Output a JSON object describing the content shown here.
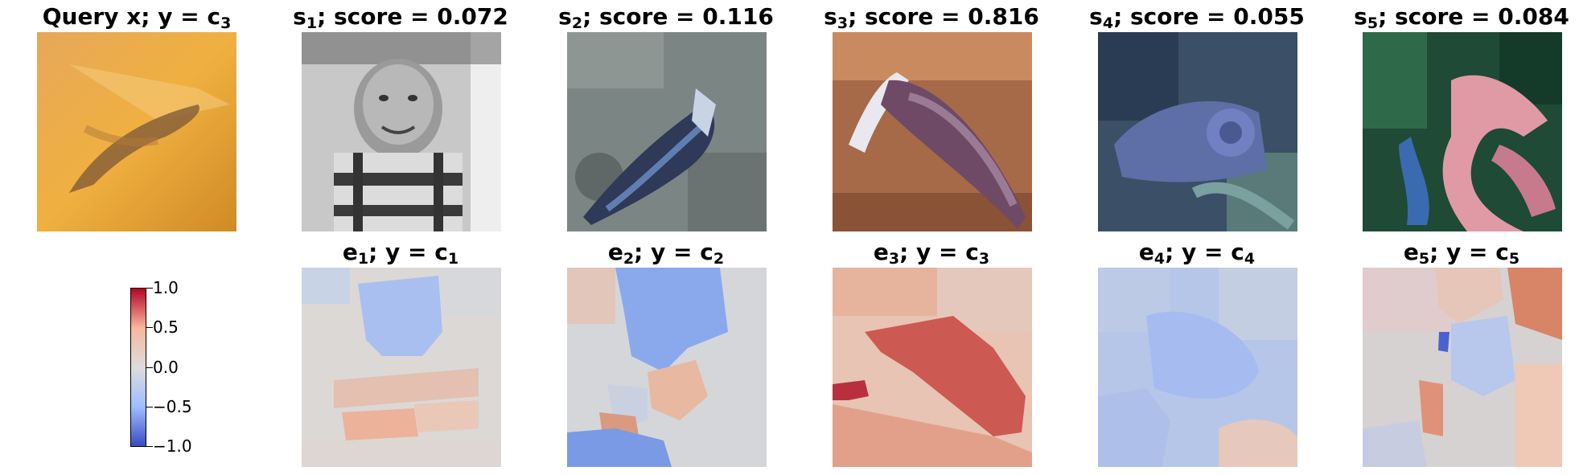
{
  "query": {
    "title": "Query x; y = c",
    "title_sub": "3",
    "image_icon": "orange-background-whale-silhouette"
  },
  "samples": [
    {
      "label": "s",
      "sub": "1",
      "score_text": "; score = 0.072",
      "score": 0.072,
      "image_icon": "grayscale-child-portrait"
    },
    {
      "label": "s",
      "sub": "2",
      "score_text": "; score = 0.116",
      "score": 0.116,
      "image_icon": "gray-blue-bird-on-rocks"
    },
    {
      "label": "s",
      "sub": "3",
      "score_text": "; score = 0.816",
      "score": 0.816,
      "image_icon": "brown-fish-on-sand"
    },
    {
      "label": "s",
      "sub": "4",
      "score_text": "; score = 0.055",
      "score": 0.055,
      "image_icon": "blue-fish-in-water"
    },
    {
      "label": "s",
      "sub": "5",
      "score_text": "; score = 0.084",
      "score": 0.084,
      "image_icon": "pink-flowers-green-foliage"
    }
  ],
  "explanations": [
    {
      "label": "e",
      "sub": "1",
      "class_text": "; y = c",
      "class_sub": "1",
      "map_icon": "mostly-neutral-saliency-map"
    },
    {
      "label": "e",
      "sub": "2",
      "class_text": "; y = c",
      "class_sub": "2",
      "map_icon": "blue-negative-saliency-map"
    },
    {
      "label": "e",
      "sub": "3",
      "class_text": "; y = c",
      "class_sub": "3",
      "map_icon": "red-positive-saliency-map"
    },
    {
      "label": "e",
      "sub": "4",
      "class_text": "; y = c",
      "class_sub": "4",
      "map_icon": "light-blue-saliency-map"
    },
    {
      "label": "e",
      "sub": "5",
      "class_text": "; y = c",
      "class_sub": "5",
      "map_icon": "mixed-saliency-map"
    }
  ],
  "colorbar": {
    "colormap": "coolwarm",
    "min": -1.0,
    "max": 1.0,
    "ticks": [
      "1.0",
      "0.5",
      "0.0",
      "−0.5",
      "−1.0"
    ],
    "colors": [
      "#b40426",
      "#f7b89c",
      "#dddcdc",
      "#9ebeff",
      "#3b4cc0"
    ]
  }
}
